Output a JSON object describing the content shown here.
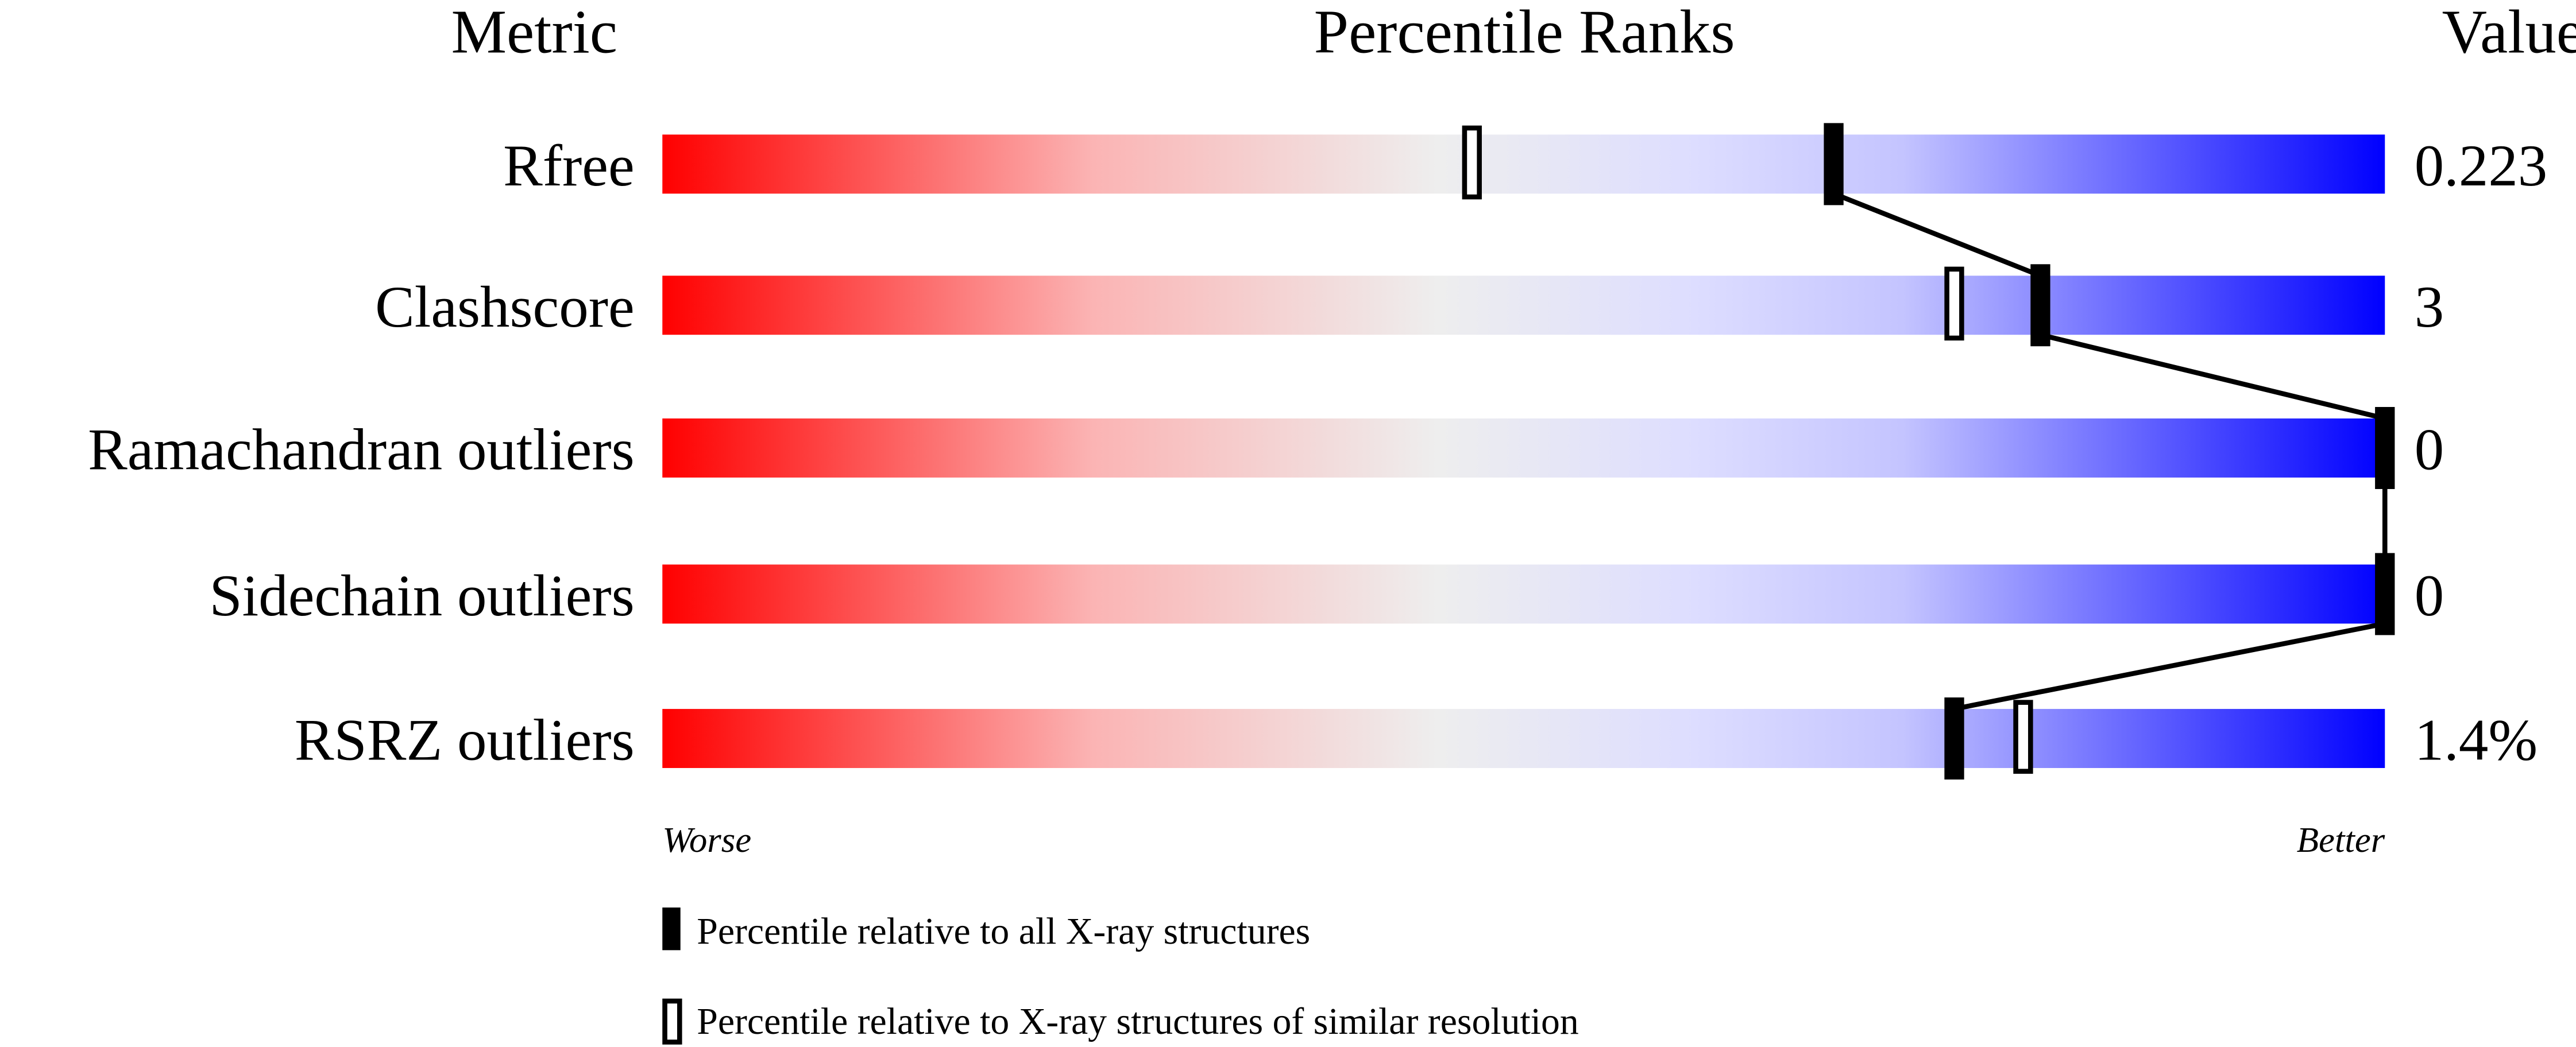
{
  "headers": {
    "metric": "Metric",
    "percentile": "Percentile Ranks",
    "value": "Value"
  },
  "colors": {
    "worse": "#ff0000",
    "middle": "#eeeeee",
    "light_blue": "#ddddff",
    "better": "#0000ff",
    "marker": "#000000"
  },
  "chart_data": {
    "type": "bar",
    "xlim": [
      0,
      100
    ],
    "grid": false,
    "categories": [
      "Rfree",
      "Clashscore",
      "Ramachandran outliers",
      "Sidechain outliers",
      "RSRZ outliers"
    ],
    "values_text": [
      "0.223",
      "3",
      "0",
      "0",
      "1.4%"
    ],
    "series": [
      {
        "name": "Percentile relative to all X-ray structures",
        "marker": "filled",
        "values": [
          68,
          80,
          100,
          100,
          75
        ]
      },
      {
        "name": "Percentile relative to X-ray structures of similar resolution",
        "marker": "open",
        "values": [
          47,
          75,
          null,
          null,
          79
        ]
      }
    ],
    "axis_low_label": "Worse",
    "axis_high_label": "Better",
    "legend_placement": "bottom"
  }
}
